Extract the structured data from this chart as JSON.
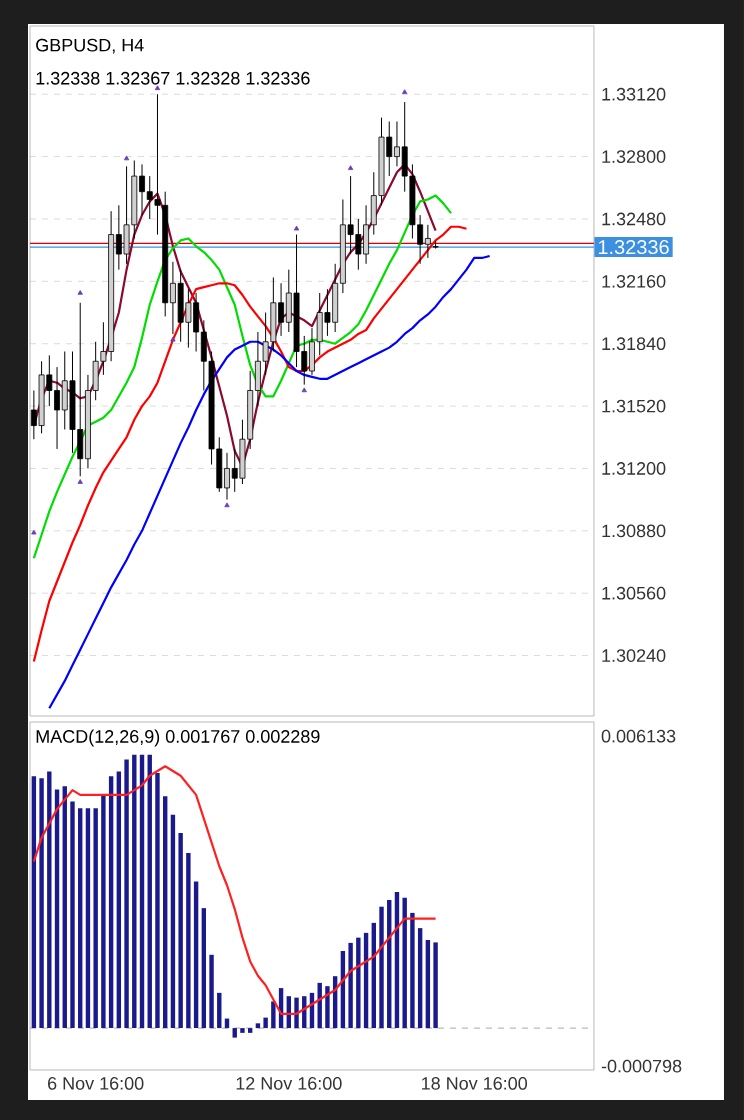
{
  "chart_data": [
    {
      "type": "candlestick",
      "title": "GBPUSD, H4",
      "subtitle": "1.32338 1.32367 1.32328 1.32336",
      "categories": [
        null,
        null,
        null,
        null,
        null,
        null,
        null,
        null,
        null,
        null,
        null,
        null,
        null,
        null,
        null,
        null,
        null,
        null,
        null,
        null,
        null,
        null,
        null,
        null,
        null,
        null,
        null,
        null,
        null,
        null,
        null,
        null,
        null,
        null,
        null,
        null,
        null,
        null,
        null,
        null,
        null,
        null,
        null,
        null,
        null,
        null,
        null,
        null,
        null,
        null,
        null,
        null,
        null,
        null,
        null,
        null,
        null,
        null,
        null,
        null,
        null,
        null,
        null,
        null,
        null,
        null,
        null,
        null,
        null,
        null,
        null,
        null,
        null
      ],
      "ohlc": [
        [
          1.315,
          1.316,
          1.3135,
          1.3142
        ],
        [
          1.3142,
          1.3175,
          1.3138,
          1.3168
        ],
        [
          1.3168,
          1.3178,
          1.3152,
          1.316
        ],
        [
          1.316,
          1.3172,
          1.313,
          1.315
        ],
        [
          1.315,
          1.318,
          1.314,
          1.3165
        ],
        [
          1.3165,
          1.318,
          1.3128,
          1.314
        ],
        [
          1.314,
          1.3205,
          1.3116,
          1.3125
        ],
        [
          1.3125,
          1.3168,
          1.312,
          1.316
        ],
        [
          1.316,
          1.3185,
          1.3155,
          1.3175
        ],
        [
          1.3175,
          1.3195,
          1.3168,
          1.318
        ],
        [
          1.318,
          1.3252,
          1.3175,
          1.324
        ],
        [
          1.324,
          1.3255,
          1.3222,
          1.323
        ],
        [
          1.323,
          1.3275,
          1.3225,
          1.3245
        ],
        [
          1.3245,
          1.3278,
          1.3238,
          1.327
        ],
        [
          1.327,
          1.3276,
          1.325,
          1.3262
        ],
        [
          1.3262,
          1.327,
          1.3248,
          1.3258
        ],
        [
          1.3258,
          1.3312,
          1.324,
          1.3255
        ],
        [
          1.3255,
          1.3262,
          1.3198,
          1.3205
        ],
        [
          1.3205,
          1.3226,
          1.3189,
          1.3215
        ],
        [
          1.3215,
          1.3222,
          1.3185,
          1.3195
        ],
        [
          1.3195,
          1.3212,
          1.3182,
          1.3205
        ],
        [
          1.3205,
          1.321,
          1.318,
          1.319
        ],
        [
          1.319,
          1.3196,
          1.316,
          1.3175
        ],
        [
          1.3175,
          1.318,
          1.3122,
          1.313
        ],
        [
          1.313,
          1.3136,
          1.3108,
          1.311
        ],
        [
          1.311,
          1.3128,
          1.3104,
          1.312
        ],
        [
          1.312,
          1.313,
          1.3108,
          1.3115
        ],
        [
          1.3115,
          1.3145,
          1.3112,
          1.3135
        ],
        [
          1.3135,
          1.317,
          1.313,
          1.316
        ],
        [
          1.316,
          1.319,
          1.3152,
          1.3175
        ],
        [
          1.3175,
          1.32,
          1.3168,
          1.3185
        ],
        [
          1.3185,
          1.3218,
          1.318,
          1.3205
        ],
        [
          1.3205,
          1.3215,
          1.3188,
          1.3195
        ],
        [
          1.3195,
          1.3222,
          1.319,
          1.321
        ],
        [
          1.321,
          1.324,
          1.3172,
          1.318
        ],
        [
          1.318,
          1.3188,
          1.3163,
          1.317
        ],
        [
          1.317,
          1.3192,
          1.3168,
          1.3185
        ],
        [
          1.3185,
          1.321,
          1.3178,
          1.32
        ],
        [
          1.32,
          1.3212,
          1.3188,
          1.3195
        ],
        [
          1.3195,
          1.3225,
          1.319,
          1.3215
        ],
        [
          1.3215,
          1.3258,
          1.321,
          1.3245
        ],
        [
          1.3245,
          1.327,
          1.323,
          1.324
        ],
        [
          1.324,
          1.3248,
          1.3222,
          1.323
        ],
        [
          1.323,
          1.3255,
          1.3225,
          1.3245
        ],
        [
          1.3245,
          1.3272,
          1.324,
          1.326
        ],
        [
          1.326,
          1.33,
          1.3255,
          1.329
        ],
        [
          1.329,
          1.3298,
          1.327,
          1.328
        ],
        [
          1.328,
          1.3298,
          1.3275,
          1.3285
        ],
        [
          1.3285,
          1.3308,
          1.3262,
          1.327
        ],
        [
          1.327,
          1.3276,
          1.3238,
          1.3245
        ],
        [
          1.3245,
          1.325,
          1.3225,
          1.3235
        ],
        [
          1.3235,
          1.3245,
          1.3228,
          1.3238
        ],
        [
          1.32338,
          1.32367,
          1.32328,
          1.32336
        ],
        null,
        null,
        null,
        null,
        null,
        null,
        null,
        null,
        null,
        null,
        null,
        null,
        null,
        null,
        null,
        null,
        null,
        null,
        null,
        null
      ],
      "series": [
        {
          "type": "line",
          "color": "#8b0a2e",
          "values": [
            1.3142,
            1.3156,
            1.3165,
            1.3164,
            1.3161,
            1.3159,
            1.3156,
            1.3157,
            1.3165,
            1.3175,
            1.3187,
            1.32,
            1.3222,
            1.324,
            1.325,
            1.3257,
            1.3261,
            1.325,
            1.3234,
            1.3221,
            1.3213,
            1.3205,
            1.3191,
            1.3177,
            1.3162,
            1.3147,
            1.3129,
            1.3121,
            1.3135,
            1.3154,
            1.317,
            1.3185,
            1.3197,
            1.32,
            1.3198,
            1.3196,
            1.3193,
            1.3201,
            1.3209,
            1.3217,
            1.3225,
            1.3231,
            1.3235,
            1.3241,
            1.3248,
            1.3256,
            1.3264,
            1.3272,
            1.3276,
            1.3271,
            1.3262,
            1.3252,
            1.3242,
            null,
            null,
            null,
            null,
            null,
            null,
            null,
            null,
            null,
            null,
            null,
            null,
            null,
            null,
            null,
            null,
            null,
            null,
            null,
            null
          ]
        },
        {
          "type": "line",
          "color": "#00dd00",
          "values": [
            1.3074,
            1.3086,
            1.3098,
            1.3108,
            1.3117,
            1.3126,
            1.3134,
            1.3142,
            1.3144,
            1.3146,
            1.315,
            1.3157,
            1.3164,
            1.3172,
            1.3187,
            1.3204,
            1.3216,
            1.3227,
            1.3233,
            1.3237,
            1.3238,
            1.3234,
            1.3231,
            1.3227,
            1.3222,
            1.3213,
            1.3204,
            1.3188,
            1.3173,
            1.3163,
            1.3157,
            1.3157,
            1.3165,
            1.3174,
            1.3183,
            1.3184,
            1.3186,
            1.3186,
            1.3185,
            1.3184,
            1.3187,
            1.319,
            1.3194,
            1.3201,
            1.3209,
            1.3217,
            1.3225,
            1.3232,
            1.3241,
            1.325,
            1.3257,
            1.3258,
            1.326,
            1.3256,
            1.3251,
            null,
            null,
            null,
            null,
            null,
            null,
            null,
            null,
            null,
            null,
            null,
            null,
            null,
            null,
            null,
            null,
            null,
            null
          ]
        },
        {
          "type": "line",
          "color": "#ff0000",
          "values": [
            1.3021,
            1.3037,
            1.3052,
            1.3062,
            1.3072,
            1.3082,
            1.3091,
            1.3101,
            1.311,
            1.3118,
            1.3124,
            1.313,
            1.3136,
            1.3145,
            1.3152,
            1.3157,
            1.3164,
            1.3175,
            1.3186,
            1.3195,
            1.3204,
            1.3212,
            1.3213,
            1.3214,
            1.3215,
            1.3215,
            1.3214,
            1.3209,
            1.3203,
            1.3198,
            1.3193,
            1.3187,
            1.318,
            1.3172,
            1.317,
            1.317,
            1.3173,
            1.3177,
            1.318,
            1.3182,
            1.3184,
            1.3186,
            1.3189,
            1.3191,
            1.3197,
            1.3202,
            1.3207,
            1.3212,
            1.3217,
            1.3222,
            1.3227,
            1.3232,
            1.3237,
            1.324,
            1.3244,
            1.3244,
            1.3243,
            null,
            null,
            null,
            null,
            null,
            null,
            null,
            null,
            null,
            null,
            null,
            null,
            null,
            null,
            null,
            null
          ]
        },
        {
          "type": "line",
          "color": "#0000ff",
          "values": [
            null,
            null,
            1.2997,
            1.3004,
            1.3011,
            1.3019,
            1.3027,
            1.3035,
            1.3043,
            1.3051,
            1.3059,
            1.3066,
            1.3073,
            1.3081,
            1.3088,
            1.3097,
            1.3106,
            1.3115,
            1.3124,
            1.3133,
            1.3141,
            1.315,
            1.3158,
            1.3165,
            1.3171,
            1.3177,
            1.3181,
            1.3183,
            1.3185,
            1.3185,
            1.3183,
            1.3181,
            1.3178,
            1.3174,
            1.317,
            1.3168,
            1.3167,
            1.3166,
            1.3166,
            1.3168,
            1.317,
            1.3172,
            1.3174,
            1.3176,
            1.3178,
            1.318,
            1.3182,
            1.3185,
            1.3189,
            1.3192,
            1.3196,
            1.3199,
            1.3203,
            1.3208,
            1.3212,
            1.3217,
            1.3222,
            1.3228,
            1.3228,
            1.3229,
            null,
            null,
            null,
            null,
            null,
            null,
            null,
            null,
            null,
            null,
            null,
            null,
            null
          ]
        },
        {
          "type": "scatter",
          "marker": "triangle",
          "color": "#6a3fb5",
          "values": [
            null,
            null,
            null,
            null,
            null,
            null,
            1.321,
            null,
            null,
            null,
            null,
            null,
            1.3279,
            null,
            null,
            null,
            1.3315,
            null,
            null,
            null,
            null,
            null,
            null,
            null,
            null,
            null,
            null,
            null,
            null,
            null,
            null,
            null,
            null,
            null,
            1.3243,
            null,
            null,
            null,
            null,
            null,
            null,
            1.3274,
            null,
            null,
            null,
            null,
            null,
            null,
            1.3313,
            null,
            null,
            null,
            null,
            null,
            null,
            null,
            null,
            null,
            null,
            null,
            null,
            null,
            null,
            null,
            null,
            null,
            null,
            null,
            null,
            null,
            null,
            null,
            null
          ]
        },
        {
          "type": "scatter",
          "marker": "triangle",
          "color": "#6a3fb5",
          "values": [
            1.3087,
            null,
            null,
            null,
            null,
            null,
            1.3113,
            null,
            null,
            null,
            null,
            null,
            null,
            null,
            null,
            null,
            null,
            null,
            1.3186,
            null,
            null,
            null,
            null,
            null,
            null,
            1.3101,
            null,
            null,
            null,
            null,
            null,
            null,
            null,
            null,
            null,
            1.316,
            null,
            null,
            null,
            null,
            null,
            null,
            null,
            null,
            null,
            null,
            null,
            null,
            null,
            null,
            null,
            null,
            null,
            null,
            null,
            null,
            null,
            null,
            null,
            null,
            null,
            null,
            null,
            null,
            null,
            null,
            null,
            null,
            null,
            null,
            null,
            null,
            null
          ]
        }
      ],
      "ylim": [
        1.2993,
        1.3347
      ],
      "yticks": [
        {
          "value": 1.3312,
          "label": "1.33120"
        },
        {
          "value": 1.328,
          "label": "1.32800"
        },
        {
          "value": 1.3248,
          "label": "1.32480"
        },
        {
          "value": 1.3216,
          "label": "1.32160"
        },
        {
          "value": 1.3184,
          "label": "1.31840"
        },
        {
          "value": 1.3152,
          "label": "1.31520"
        },
        {
          "value": 1.312,
          "label": "1.31200"
        },
        {
          "value": 1.3088,
          "label": "1.30880"
        },
        {
          "value": 1.3056,
          "label": "1.30560"
        },
        {
          "value": 1.3024,
          "label": "1.30240"
        }
      ],
      "grid": "y",
      "tick_labels": "y",
      "ref_lines": [
        {
          "axis": "y",
          "value": 1.32355,
          "color": "#e00000"
        },
        {
          "axis": "y",
          "value": 1.32336,
          "label": "1.32336",
          "color": "#3d8fe0"
        }
      ]
    },
    {
      "type": "bar",
      "title": "MACD(12,26,9) 0.001767 0.002289",
      "series": [
        {
          "type": "bar",
          "color": "#1a1a8c",
          "values": [
            0.00529,
            0.00525,
            0.00539,
            0.00501,
            0.00508,
            0.00476,
            0.00462,
            0.00462,
            0.00462,
            0.0049,
            0.00529,
            0.00539,
            0.00564,
            0.00574,
            0.00574,
            0.00574,
            0.00536,
            0.00487,
            0.00448,
            0.0041,
            0.00368,
            0.00308,
            0.00252,
            0.00154,
            0.00074,
            0.0002,
            -0.0002,
            -0.0001,
            -0.0001,
            0.0001,
            0.00022,
            0.00056,
            0.00084,
            0.00067,
            0.00064,
            0.00067,
            0.00074,
            0.00095,
            0.00088,
            0.00109,
            0.00162,
            0.00179,
            0.0019,
            0.002,
            0.00221,
            0.00255,
            0.00269,
            0.00286,
            0.00274,
            0.00242,
            0.0021,
            0.00185,
            0.0018,
            null,
            null,
            null,
            null,
            null,
            null,
            null,
            null,
            null,
            null,
            null,
            null,
            null,
            null,
            null,
            null,
            null,
            null,
            null,
            null
          ]
        },
        {
          "type": "line",
          "color": "#ff2020",
          "values": [
            0.0035,
            0.004,
            0.0043,
            0.0046,
            0.0048,
            0.005,
            0.0049,
            0.0049,
            0.0049,
            0.0049,
            0.0049,
            0.0049,
            0.0049,
            0.005,
            0.0051,
            0.0053,
            0.0054,
            0.0055,
            0.0054,
            0.0053,
            0.0051,
            0.0049,
            0.0044,
            0.0039,
            0.0034,
            0.003,
            0.0025,
            0.0019,
            0.0014,
            0.0011,
            0.0009,
            0.0006,
            0.0003,
            0.0003,
            0.0003,
            0.0004,
            0.0005,
            0.0006,
            0.0007,
            0.0008,
            0.001,
            0.0012,
            0.0013,
            0.0014,
            0.0015,
            0.0017,
            0.0019,
            0.0021,
            0.0023,
            0.0023,
            0.0023,
            0.0023,
            0.0023,
            null,
            null,
            null,
            null,
            null,
            null,
            null,
            null,
            null,
            null,
            null,
            null,
            null,
            null,
            null,
            null,
            null,
            null,
            null,
            null
          ]
        }
      ],
      "categories": [
        null,
        null,
        null,
        null,
        null,
        null,
        null,
        null,
        "6 Nov 16:00",
        null,
        null,
        null,
        null,
        null,
        null,
        null,
        null,
        null,
        null,
        null,
        null,
        null,
        null,
        null,
        null,
        null,
        null,
        null,
        null,
        null,
        null,
        null,
        null,
        "12 Nov 16:00",
        null,
        null,
        null,
        null,
        null,
        null,
        null,
        null,
        null,
        null,
        null,
        null,
        null,
        null,
        null,
        null,
        null,
        null,
        null,
        null,
        null,
        null,
        null,
        "18 Nov 16:00",
        null,
        null,
        null,
        null,
        null,
        null,
        null,
        null,
        null,
        null,
        null,
        null,
        null,
        null,
        null
      ],
      "ylim": [
        -0.00088,
        0.00643
      ],
      "yticks": [
        0.006133,
        -0.000798
      ],
      "ref_lines": [
        {
          "axis": "y",
          "value": 0,
          "color": "#bbbbbb",
          "line_style": "dashed"
        }
      ]
    }
  ]
}
